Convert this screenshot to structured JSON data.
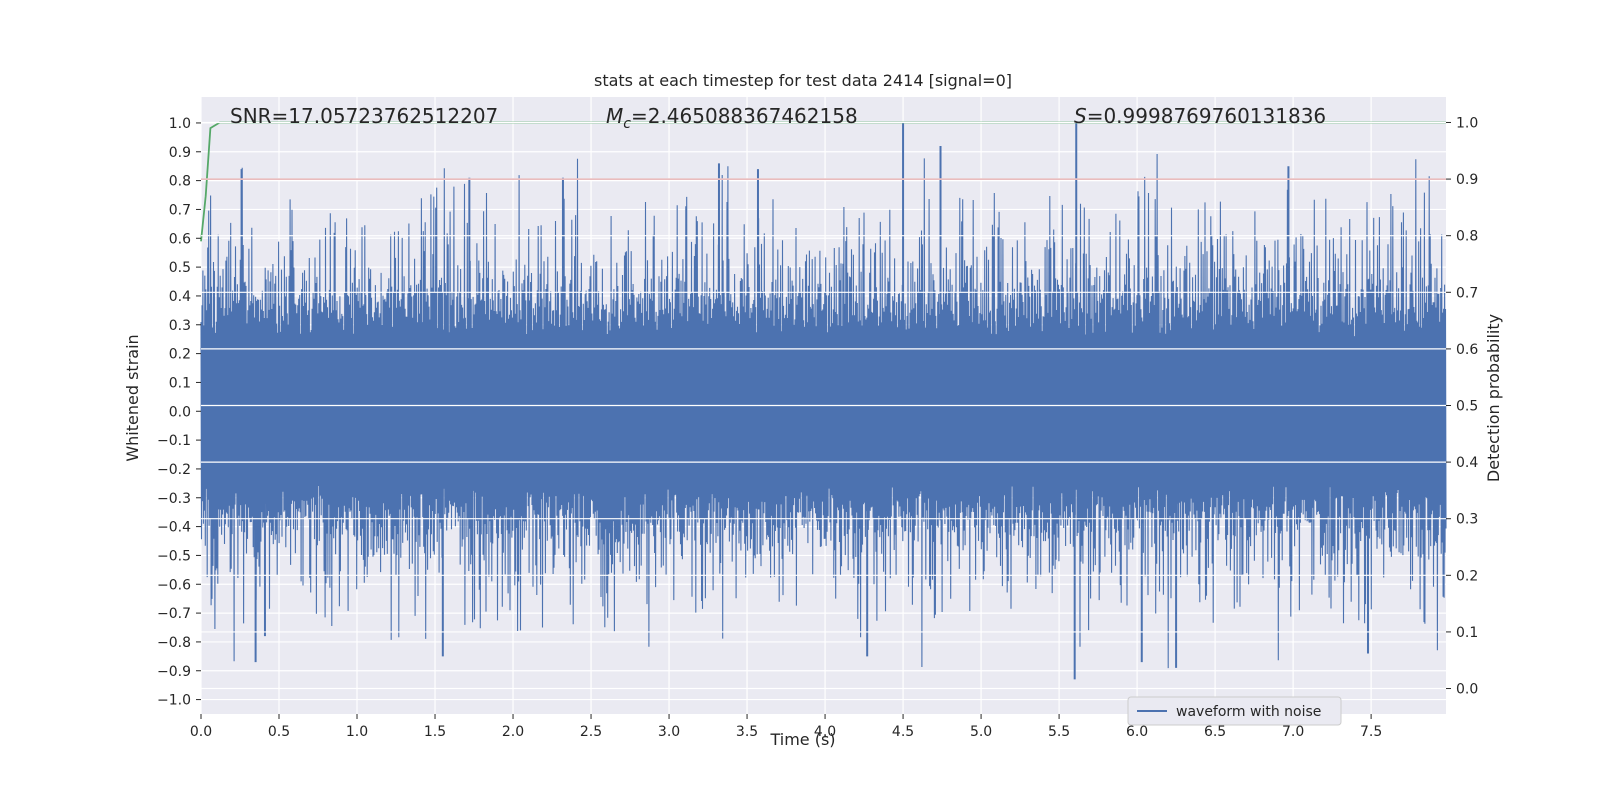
{
  "chart_data": {
    "type": "line",
    "title": "stats at each timestep for test data 2414 [signal=0]",
    "xlabel": "Time (s)",
    "ylabel_left": "Whitened strain",
    "ylabel_right": "Detection probability",
    "xlim": [
      0.0,
      7.98
    ],
    "ylim_left": [
      -1.05,
      1.09
    ],
    "ylim_right": [
      -0.045,
      1.045
    ],
    "x_ticks": [
      "0.0",
      "0.5",
      "1.0",
      "1.5",
      "2.0",
      "2.5",
      "3.0",
      "3.5",
      "4.0",
      "4.5",
      "5.0",
      "5.5",
      "6.0",
      "6.5",
      "7.0",
      "7.5"
    ],
    "y_left_ticks": [
      "1.0",
      "0.9",
      "0.8",
      "0.7",
      "0.6",
      "0.5",
      "0.4",
      "0.3",
      "0.2",
      "0.1",
      "0.0",
      "−0.1",
      "−0.2",
      "−0.3",
      "−0.4",
      "−0.5",
      "−0.6",
      "−0.7",
      "−0.8",
      "−0.9",
      "−1.0"
    ],
    "y_right_ticks": [
      "1.0",
      "0.9",
      "0.8",
      "0.7",
      "0.6",
      "0.5",
      "0.4",
      "0.3",
      "0.2",
      "0.1",
      "0.0"
    ],
    "grid": true,
    "legend_position": "lower-right",
    "annotations": {
      "snr": "SNR=17.05723762512207",
      "mc_main": "M",
      "mc_sub": "c",
      "mc_value": "=2.465088367462158",
      "s_main": "S",
      "s_value": "=0.9998769760131836"
    },
    "series": [
      {
        "name": "waveform with noise",
        "axis": "left",
        "color": "#4c72b0",
        "style": "dense noise",
        "spikes": [
          {
            "x": 0.26,
            "y": 0.84
          },
          {
            "x": 0.35,
            "y": -0.87
          },
          {
            "x": 0.41,
            "y": -0.78
          },
          {
            "x": 1.72,
            "y": 0.81
          },
          {
            "x": 1.55,
            "y": -0.85
          },
          {
            "x": 2.32,
            "y": 0.81
          },
          {
            "x": 3.32,
            "y": 0.86
          },
          {
            "x": 3.57,
            "y": 0.84
          },
          {
            "x": 4.27,
            "y": -0.85
          },
          {
            "x": 4.5,
            "y": 1.0
          },
          {
            "x": 4.74,
            "y": 0.92
          },
          {
            "x": 5.61,
            "y": 1.0
          },
          {
            "x": 5.6,
            "y": -0.93
          },
          {
            "x": 6.03,
            "y": -0.87
          },
          {
            "x": 6.25,
            "y": -0.89
          },
          {
            "x": 6.97,
            "y": 0.85
          },
          {
            "x": 7.48,
            "y": -0.84
          }
        ]
      },
      {
        "name": "",
        "axis": "right",
        "color": "#55a868",
        "points": [
          [
            0.0,
            0.79
          ],
          [
            0.03,
            0.87
          ],
          [
            0.06,
            0.99
          ],
          [
            0.12,
            1.0
          ],
          [
            7.98,
            1.0
          ]
        ]
      },
      {
        "name": "",
        "axis": "right",
        "color": "#c44e52",
        "points": [
          [
            0.0,
            0.9
          ],
          [
            7.98,
            0.9
          ]
        ]
      }
    ]
  }
}
